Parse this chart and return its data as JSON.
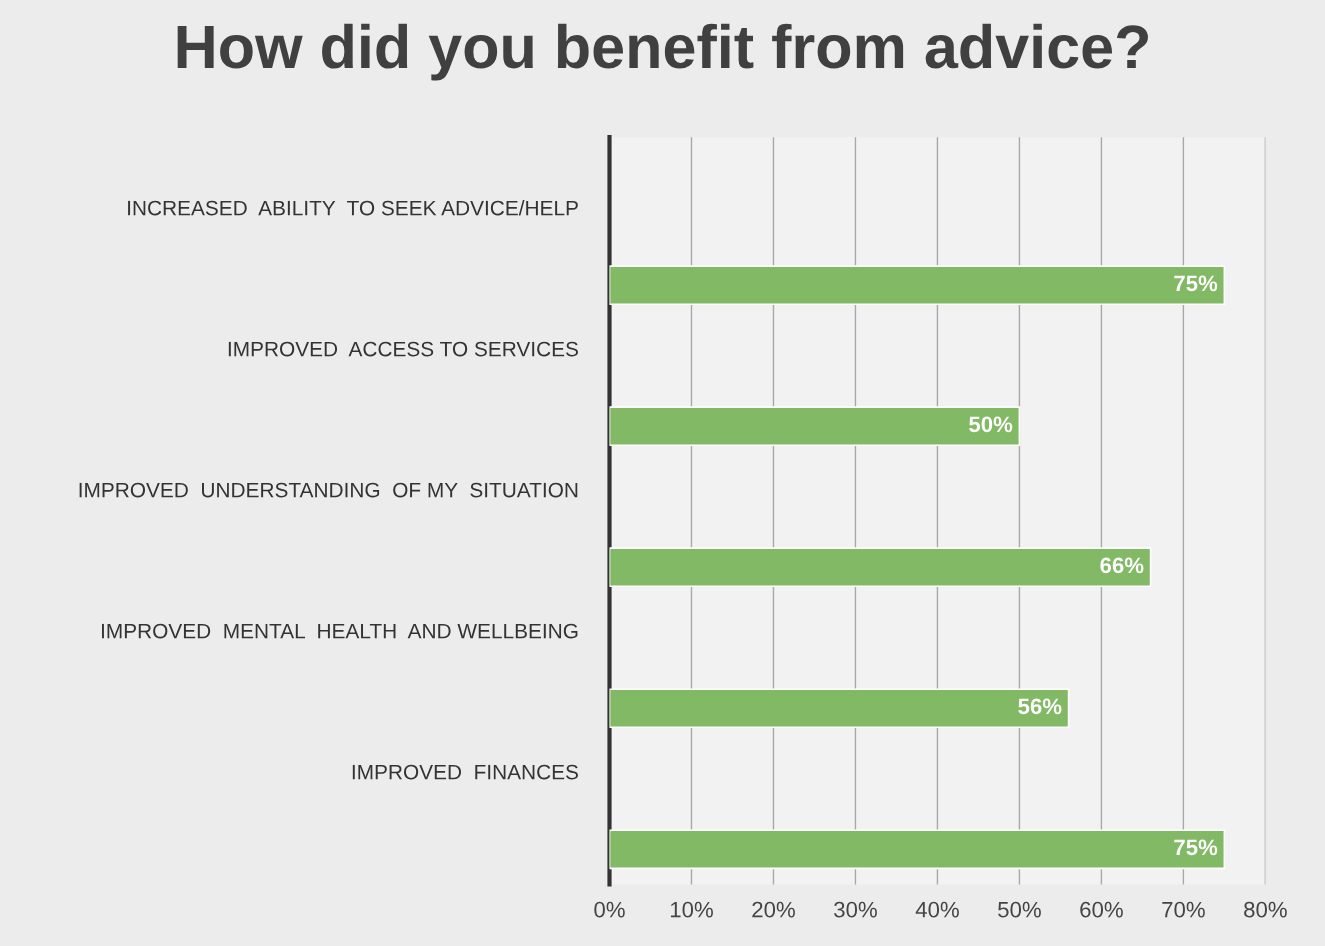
{
  "chart_data": {
    "type": "bar",
    "orientation": "horizontal",
    "title": "How did you benefit from advice?",
    "categories": [
      "INCREASED  ABILITY  TO SEEK ADVICE/HELP",
      "IMPROVED  ACCESS TO SERVICES",
      "IMPROVED  UNDERSTANDING  OF MY  SITUATION",
      "IMPROVED  MENTAL  HEALTH  AND WELLBEING",
      "IMPROVED  FINANCES"
    ],
    "values": [
      75,
      50,
      66,
      56,
      75
    ],
    "value_labels": [
      "75%",
      "50%",
      "66%",
      "56%",
      "75%"
    ],
    "color": "#82b965",
    "xlim": [
      0,
      80
    ],
    "xticks": [
      {
        "value": 0,
        "label": "0%"
      },
      {
        "value": 10,
        "label": "10%"
      },
      {
        "value": 20,
        "label": "20%"
      },
      {
        "value": 30,
        "label": "30%"
      },
      {
        "value": 40,
        "label": "40%"
      },
      {
        "value": 50,
        "label": "50%"
      },
      {
        "value": 60,
        "label": "60%"
      },
      {
        "value": 70,
        "label": "70%"
      },
      {
        "value": 80,
        "label": "80%"
      }
    ],
    "grid": "x",
    "legend": false
  }
}
